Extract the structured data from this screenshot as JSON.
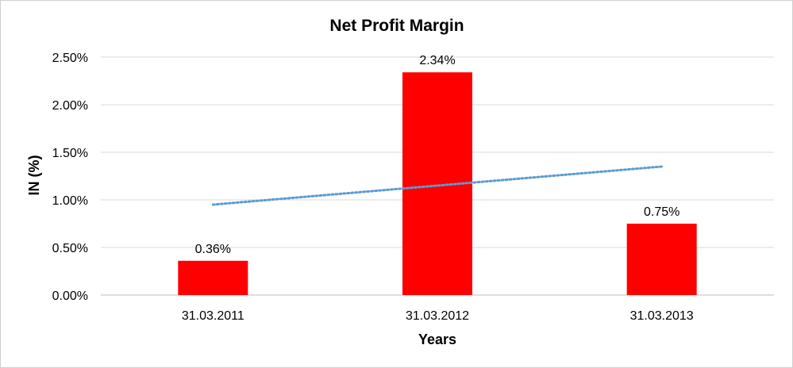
{
  "chart_data": {
    "type": "bar",
    "title": "Net Profit Margin",
    "xlabel": "Years",
    "ylabel": "IN (%)",
    "categories": [
      "31.03.2011",
      "31.03.2012",
      "31.03.2013"
    ],
    "values": [
      0.36,
      2.34,
      0.75
    ],
    "data_labels": [
      "0.36%",
      "2.34%",
      "0.75%"
    ],
    "ylim": [
      0,
      2.5
    ],
    "y_ticks": [
      0,
      0.5,
      1.0,
      1.5,
      2.0,
      2.5
    ],
    "y_tick_labels": [
      "0.00%",
      "0.50%",
      "1.00%",
      "1.50%",
      "2.00%",
      "2.50%"
    ],
    "trendline": {
      "type": "linear",
      "start": 0.95,
      "end": 1.35
    },
    "grid": true,
    "legend": "none",
    "bar_color": "#ff0000",
    "trendline_color": "#5b9bd5"
  }
}
